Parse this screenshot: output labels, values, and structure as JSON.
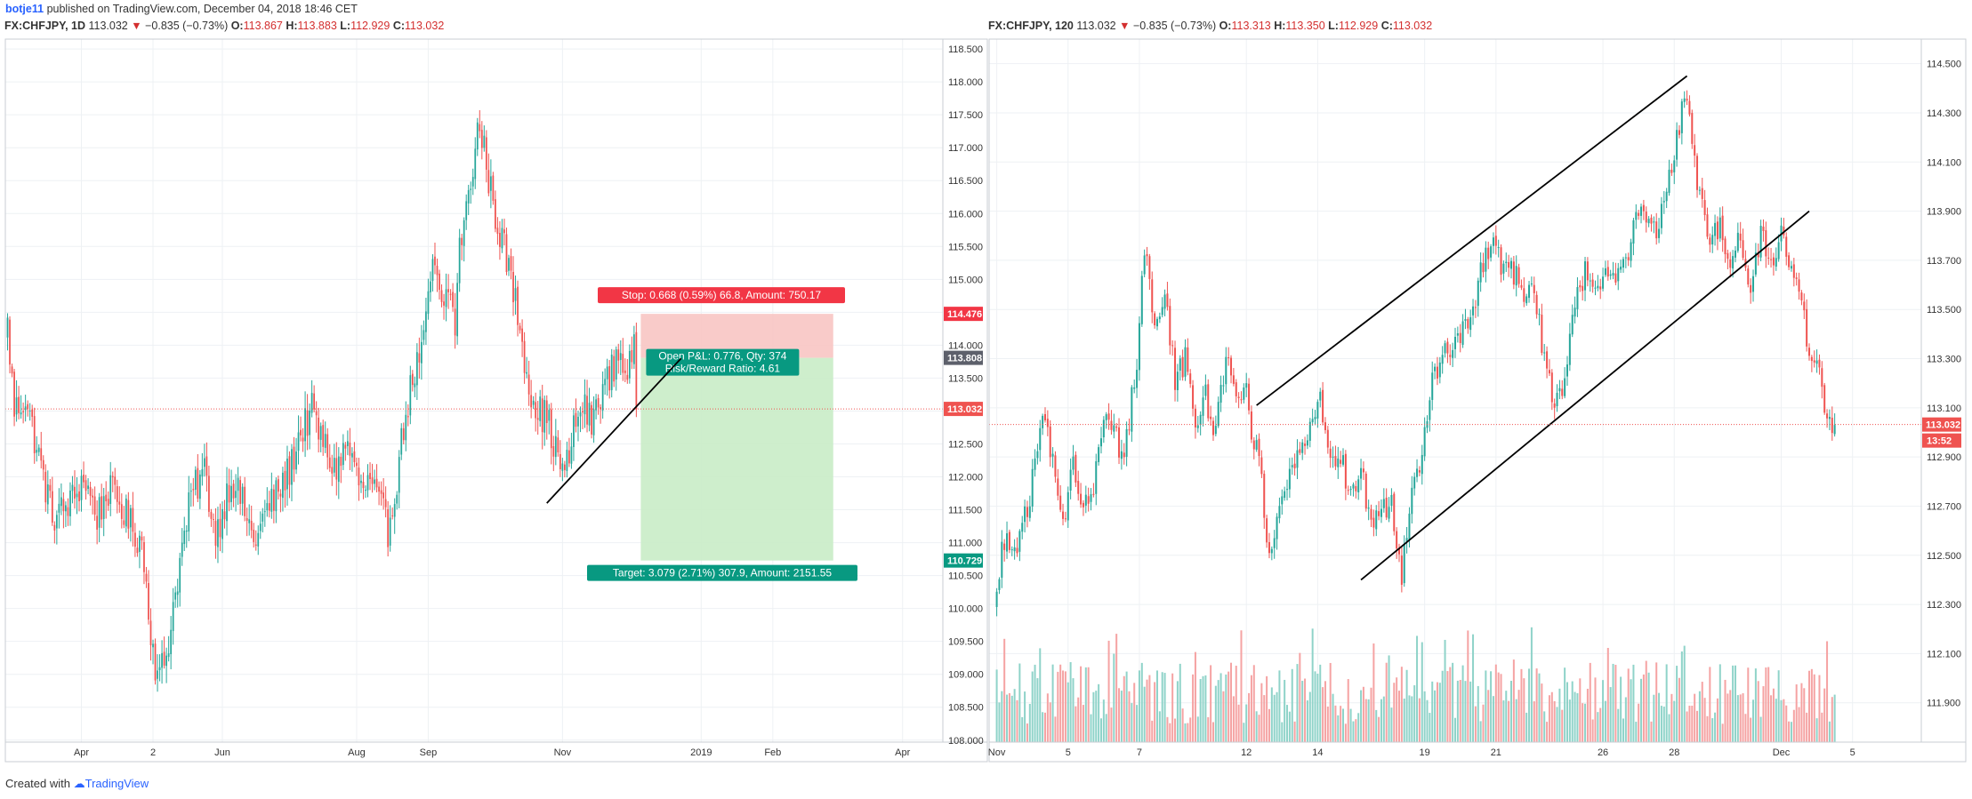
{
  "header": {
    "author": "botje11",
    "published_text": "published on TradingView.com, December 04, 2018 18:46 CET"
  },
  "footer": {
    "created_with": "Created with",
    "brand": "TradingView"
  },
  "colors": {
    "up": "#26a69a",
    "down": "#ef5350",
    "up_volume": "#8fd3c9",
    "down_volume": "#f5a3a3",
    "grid": "#eef1f4",
    "axis_text": "#333333",
    "price_line": "#ef5350",
    "stop_zone": "#f8c5c3",
    "target_zone": "#c9ecc6",
    "stop_label": "#f23645",
    "target_label": "#089981"
  },
  "chart_data": [
    {
      "type": "candlestick",
      "symbol": "FX:CHFJPY",
      "timeframe": "1D",
      "last_price": "113.032",
      "change": "−0.835 (−0.73%)",
      "change_arrow": "▼",
      "ohlc": {
        "O": "113.867",
        "H": "113.883",
        "L": "112.929",
        "C": "113.032"
      },
      "ylim": [
        107.97,
        118.65
      ],
      "y_ticks": [
        108.0,
        108.5,
        109.0,
        109.5,
        110.0,
        110.5,
        111.0,
        111.5,
        112.0,
        112.5,
        113.0,
        113.5,
        114.0,
        114.5,
        115.0,
        115.5,
        116.0,
        116.5,
        117.0,
        117.5,
        118.0,
        118.5
      ],
      "y_tick_labels": [
        "108.000",
        "108.500",
        "109.000",
        "109.500",
        "110.000",
        "110.500",
        "111.000",
        "111.500",
        "112.000",
        "112.500",
        "113.000",
        "113.500",
        "114.000",
        "114.500",
        "115.000",
        "115.500",
        "116.000",
        "116.500",
        "117.000",
        "117.500",
        "118.000",
        "118.500"
      ],
      "x_labels": [
        {
          "label": "Apr",
          "bar": 33
        },
        {
          "label": "2",
          "bar": 65
        },
        {
          "label": "Jun",
          "bar": 96
        },
        {
          "label": "Aug",
          "bar": 156
        },
        {
          "label": "Sep",
          "bar": 188
        },
        {
          "label": "Nov",
          "bar": 248
        },
        {
          "label": "2019",
          "bar": 310
        },
        {
          "label": "Feb",
          "bar": 342
        },
        {
          "label": "Apr",
          "bar": 400
        }
      ],
      "bar_domain": [
        -1,
        418
      ],
      "bar_count": 282,
      "anchors": [
        [
          0,
          114.3
        ],
        [
          3,
          113.0
        ],
        [
          8,
          113.2
        ],
        [
          14,
          112.3
        ],
        [
          20,
          111.4
        ],
        [
          25,
          111.5
        ],
        [
          30,
          111.7
        ],
        [
          34,
          112.0
        ],
        [
          40,
          111.4
        ],
        [
          45,
          111.8
        ],
        [
          50,
          111.6
        ],
        [
          56,
          111.2
        ],
        [
          60,
          111.0
        ],
        [
          64,
          109.7
        ],
        [
          67,
          108.9
        ],
        [
          71,
          109.3
        ],
        [
          76,
          110.5
        ],
        [
          82,
          111.7
        ],
        [
          88,
          112.1
        ],
        [
          93,
          111.1
        ],
        [
          100,
          112.0
        ],
        [
          106,
          111.5
        ],
        [
          110,
          111.0
        ],
        [
          116,
          111.5
        ],
        [
          120,
          111.7
        ],
        [
          126,
          112.1
        ],
        [
          130,
          112.6
        ],
        [
          136,
          113.0
        ],
        [
          140,
          112.6
        ],
        [
          146,
          112.1
        ],
        [
          152,
          112.5
        ],
        [
          158,
          111.8
        ],
        [
          162,
          111.9
        ],
        [
          167,
          111.5
        ],
        [
          170,
          111.2
        ],
        [
          174,
          112.0
        ],
        [
          178,
          113.0
        ],
        [
          182,
          113.6
        ],
        [
          186,
          114.0
        ],
        [
          190,
          115.3
        ],
        [
          194,
          114.5
        ],
        [
          197,
          114.9
        ],
        [
          200,
          114.3
        ],
        [
          202,
          115.5
        ],
        [
          206,
          116.2
        ],
        [
          210,
          117.3
        ],
        [
          213,
          117.0
        ],
        [
          217,
          116.1
        ],
        [
          221,
          115.6
        ],
        [
          225,
          115.0
        ],
        [
          229,
          114.3
        ],
        [
          233,
          113.4
        ],
        [
          237,
          113.0
        ],
        [
          241,
          112.9
        ],
        [
          245,
          112.4
        ],
        [
          249,
          112.0
        ],
        [
          253,
          112.7
        ],
        [
          257,
          113.1
        ],
        [
          261,
          112.8
        ],
        [
          265,
          113.3
        ],
        [
          269,
          113.5
        ],
        [
          273,
          113.9
        ],
        [
          277,
          113.6
        ],
        [
          280,
          113.9
        ],
        [
          281,
          113.03
        ]
      ],
      "position": {
        "type": "long",
        "start_bar": 283,
        "end_bar": 369,
        "entry": 113.808,
        "stop": 114.476,
        "target": 110.729,
        "entry_label": "113.808",
        "stop_axis_label": "114.476",
        "target_axis_label": "110.729",
        "price_axis_label": "113.032",
        "stop_text": "Stop: 0.668 (0.59%) 66.8, Amount: 750.17",
        "target_text": "Target: 3.079 (2.71%) 307.9, Amount: 2151.55",
        "pnl_text": "Open P&L: 0.776, Qty: 374",
        "rr_text": "Risk/Reward Ratio: 4.61"
      },
      "trendline": {
        "from": [
          241,
          111.6
        ],
        "to": [
          301,
          113.8
        ]
      }
    },
    {
      "type": "candlestick",
      "symbol": "FX:CHFJPY",
      "timeframe": "120",
      "last_price": "113.032",
      "change": "−0.835 (−0.73%)",
      "change_arrow": "▼",
      "ohlc": {
        "O": "113.313",
        "H": "113.350",
        "L": "112.929",
        "C": "113.032"
      },
      "ylim": [
        111.74,
        114.6
      ],
      "y_ticks": [
        111.9,
        112.1,
        112.3,
        112.5,
        112.7,
        112.9,
        113.1,
        113.3,
        113.5,
        113.7,
        113.9,
        114.1,
        114.3,
        114.5
      ],
      "y_tick_labels": [
        "111.900",
        "112.100",
        "112.300",
        "112.500",
        "112.700",
        "112.900",
        "113.100",
        "113.300",
        "113.500",
        "113.700",
        "113.900",
        "114.100",
        "114.300",
        "114.500"
      ],
      "x_labels": [
        {
          "label": "Nov",
          "bar": 0
        },
        {
          "label": "5",
          "bar": 28
        },
        {
          "label": "7",
          "bar": 56
        },
        {
          "label": "12",
          "bar": 98
        },
        {
          "label": "14",
          "bar": 126
        },
        {
          "label": "19",
          "bar": 168
        },
        {
          "label": "21",
          "bar": 196
        },
        {
          "label": "26",
          "bar": 238
        },
        {
          "label": "28",
          "bar": 266
        },
        {
          "label": "Dec",
          "bar": 308
        },
        {
          "label": "5",
          "bar": 336
        }
      ],
      "bar_domain": [
        -3,
        363
      ],
      "bar_count": 330,
      "anchors": [
        [
          0,
          112.4
        ],
        [
          4,
          112.6
        ],
        [
          8,
          112.5
        ],
        [
          14,
          112.8
        ],
        [
          18,
          113.1
        ],
        [
          22,
          112.9
        ],
        [
          26,
          112.6
        ],
        [
          30,
          112.9
        ],
        [
          34,
          112.7
        ],
        [
          38,
          112.8
        ],
        [
          42,
          113.1
        ],
        [
          46,
          113.0
        ],
        [
          50,
          112.9
        ],
        [
          55,
          113.3
        ],
        [
          58,
          113.75
        ],
        [
          62,
          113.4
        ],
        [
          66,
          113.6
        ],
        [
          70,
          113.2
        ],
        [
          74,
          113.3
        ],
        [
          78,
          113.05
        ],
        [
          82,
          113.15
        ],
        [
          86,
          113.0
        ],
        [
          90,
          113.3
        ],
        [
          94,
          113.15
        ],
        [
          98,
          113.2
        ],
        [
          100,
          113.0
        ],
        [
          103,
          112.9
        ],
        [
          107,
          112.5
        ],
        [
          111,
          112.7
        ],
        [
          115,
          112.8
        ],
        [
          119,
          112.9
        ],
        [
          123,
          113.0
        ],
        [
          127,
          113.15
        ],
        [
          131,
          112.85
        ],
        [
          135,
          112.9
        ],
        [
          139,
          112.75
        ],
        [
          143,
          112.85
        ],
        [
          147,
          112.6
        ],
        [
          151,
          112.7
        ],
        [
          155,
          112.7
        ],
        [
          159,
          112.4
        ],
        [
          163,
          112.8
        ],
        [
          167,
          112.9
        ],
        [
          171,
          113.2
        ],
        [
          175,
          113.3
        ],
        [
          179,
          113.35
        ],
        [
          183,
          113.4
        ],
        [
          187,
          113.5
        ],
        [
          191,
          113.7
        ],
        [
          195,
          113.75
        ],
        [
          199,
          113.65
        ],
        [
          203,
          113.65
        ],
        [
          207,
          113.55
        ],
        [
          211,
          113.6
        ],
        [
          215,
          113.3
        ],
        [
          219,
          113.1
        ],
        [
          223,
          113.2
        ],
        [
          227,
          113.5
        ],
        [
          231,
          113.65
        ],
        [
          235,
          113.55
        ],
        [
          239,
          113.7
        ],
        [
          243,
          113.6
        ],
        [
          247,
          113.7
        ],
        [
          251,
          113.85
        ],
        [
          255,
          113.9
        ],
        [
          259,
          113.8
        ],
        [
          263,
          114.0
        ],
        [
          267,
          114.2
        ],
        [
          270,
          114.35
        ],
        [
          273,
          114.2
        ],
        [
          276,
          113.95
        ],
        [
          280,
          113.8
        ],
        [
          284,
          113.85
        ],
        [
          288,
          113.7
        ],
        [
          292,
          113.8
        ],
        [
          296,
          113.6
        ],
        [
          300,
          113.8
        ],
        [
          304,
          113.7
        ],
        [
          308,
          113.8
        ],
        [
          312,
          113.65
        ],
        [
          316,
          113.5
        ],
        [
          320,
          113.3
        ],
        [
          323,
          113.25
        ],
        [
          325,
          113.03
        ]
      ],
      "price_axis_label": "113.032",
      "countdown_label": "13:52",
      "trendlines": [
        {
          "from": [
            102,
            113.11
          ],
          "to": [
            271,
            114.45
          ]
        },
        {
          "from": [
            143,
            112.4
          ],
          "to": [
            319,
            113.9
          ]
        }
      ]
    }
  ]
}
